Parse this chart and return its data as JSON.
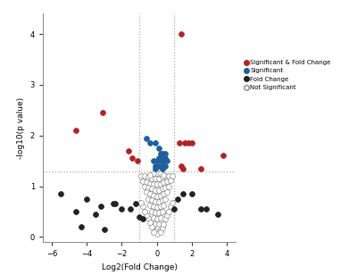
{
  "title": "",
  "xlabel": "Log2(Fold Change)",
  "ylabel": "-log10(p value)",
  "xlim": [
    -6.5,
    4.5
  ],
  "ylim": [
    -0.1,
    4.4
  ],
  "xticks": [
    -6,
    -4,
    -2,
    0,
    2,
    4
  ],
  "yticks": [
    0,
    1,
    2,
    3,
    4
  ],
  "vline1": -1.0,
  "vline2": 1.0,
  "hline": 1.3,
  "colors": {
    "significant_fold": "#b22222",
    "significant": "#1f5f9e",
    "fold_change": "#222222",
    "not_significant_edge": "#888888",
    "not_significant_face": "white"
  },
  "significant_fold_points": [
    [
      1.4,
      4.0
    ],
    [
      -3.1,
      2.45
    ],
    [
      -4.6,
      2.1
    ],
    [
      -1.6,
      1.7
    ],
    [
      -1.4,
      1.55
    ],
    [
      -1.1,
      1.5
    ],
    [
      1.3,
      1.85
    ],
    [
      1.6,
      1.85
    ],
    [
      1.8,
      1.85
    ],
    [
      1.4,
      1.4
    ],
    [
      1.5,
      1.35
    ],
    [
      2.0,
      1.85
    ],
    [
      3.8,
      1.6
    ],
    [
      2.5,
      1.35
    ]
  ],
  "significant_points": [
    [
      -0.6,
      1.95
    ],
    [
      -0.4,
      1.85
    ],
    [
      -0.1,
      1.85
    ],
    [
      0.1,
      1.75
    ],
    [
      0.2,
      1.65
    ],
    [
      0.3,
      1.65
    ],
    [
      0.5,
      1.65
    ],
    [
      0.1,
      1.55
    ],
    [
      0.3,
      1.55
    ],
    [
      0.5,
      1.55
    ],
    [
      -0.2,
      1.5
    ],
    [
      0.0,
      1.5
    ],
    [
      0.2,
      1.5
    ],
    [
      0.4,
      1.5
    ],
    [
      0.6,
      1.5
    ],
    [
      -0.1,
      1.4
    ],
    [
      0.1,
      1.4
    ],
    [
      0.3,
      1.4
    ],
    [
      0.5,
      1.4
    ],
    [
      -0.1,
      1.35
    ],
    [
      0.3,
      1.35
    ]
  ],
  "fold_change_points": [
    [
      -5.5,
      0.85
    ],
    [
      -4.6,
      0.5
    ],
    [
      -4.3,
      0.2
    ],
    [
      -4.0,
      0.75
    ],
    [
      -3.5,
      0.45
    ],
    [
      -3.2,
      0.6
    ],
    [
      -3.0,
      0.15
    ],
    [
      -2.5,
      0.65
    ],
    [
      -2.4,
      0.65
    ],
    [
      -2.0,
      0.55
    ],
    [
      -1.5,
      0.55
    ],
    [
      -1.2,
      0.65
    ],
    [
      -1.0,
      0.4
    ],
    [
      -0.8,
      0.35
    ],
    [
      1.0,
      0.55
    ],
    [
      1.2,
      0.75
    ],
    [
      1.5,
      0.85
    ],
    [
      2.0,
      0.85
    ],
    [
      2.5,
      0.55
    ],
    [
      2.8,
      0.55
    ],
    [
      3.5,
      0.45
    ]
  ],
  "not_significant_points": [
    [
      -0.9,
      1.2
    ],
    [
      -0.7,
      1.2
    ],
    [
      -0.5,
      1.18
    ],
    [
      -0.3,
      1.15
    ],
    [
      -0.1,
      1.15
    ],
    [
      0.1,
      1.15
    ],
    [
      0.3,
      1.18
    ],
    [
      0.5,
      1.2
    ],
    [
      0.7,
      1.2
    ],
    [
      0.9,
      1.2
    ],
    [
      -0.8,
      1.1
    ],
    [
      -0.6,
      1.08
    ],
    [
      -0.4,
      1.05
    ],
    [
      -0.2,
      1.05
    ],
    [
      0.0,
      1.05
    ],
    [
      0.2,
      1.05
    ],
    [
      0.4,
      1.08
    ],
    [
      0.6,
      1.1
    ],
    [
      0.8,
      1.12
    ],
    [
      -0.7,
      1.0
    ],
    [
      -0.5,
      0.98
    ],
    [
      -0.3,
      0.95
    ],
    [
      -0.1,
      0.92
    ],
    [
      0.1,
      0.92
    ],
    [
      0.3,
      0.95
    ],
    [
      0.5,
      0.98
    ],
    [
      0.7,
      1.0
    ],
    [
      -0.6,
      0.88
    ],
    [
      -0.4,
      0.85
    ],
    [
      -0.2,
      0.82
    ],
    [
      0.0,
      0.8
    ],
    [
      0.2,
      0.82
    ],
    [
      0.4,
      0.85
    ],
    [
      0.6,
      0.88
    ],
    [
      -0.5,
      0.75
    ],
    [
      -0.3,
      0.72
    ],
    [
      -0.1,
      0.7
    ],
    [
      0.1,
      0.7
    ],
    [
      0.3,
      0.72
    ],
    [
      0.5,
      0.75
    ],
    [
      -0.4,
      0.62
    ],
    [
      -0.2,
      0.6
    ],
    [
      0.0,
      0.58
    ],
    [
      0.2,
      0.6
    ],
    [
      0.4,
      0.62
    ],
    [
      -0.3,
      0.5
    ],
    [
      -0.1,
      0.48
    ],
    [
      0.1,
      0.48
    ],
    [
      0.3,
      0.5
    ],
    [
      -0.2,
      0.38
    ],
    [
      0.0,
      0.36
    ],
    [
      0.2,
      0.38
    ],
    [
      -0.1,
      0.26
    ],
    [
      0.1,
      0.26
    ],
    [
      0.0,
      0.16
    ],
    [
      0.1,
      0.12
    ],
    [
      -0.1,
      0.12
    ],
    [
      0.0,
      0.06
    ],
    [
      0.2,
      0.1
    ],
    [
      -0.2,
      0.1
    ],
    [
      0.3,
      0.18
    ],
    [
      -0.3,
      0.2
    ],
    [
      0.4,
      0.26
    ],
    [
      -0.4,
      0.28
    ],
    [
      0.5,
      0.36
    ],
    [
      -0.5,
      0.38
    ],
    [
      0.6,
      0.42
    ],
    [
      -0.6,
      0.42
    ],
    [
      0.7,
      0.5
    ],
    [
      -0.7,
      0.5
    ],
    [
      0.8,
      0.6
    ],
    [
      -0.8,
      0.6
    ],
    [
      0.9,
      0.68
    ],
    [
      -0.9,
      0.68
    ],
    [
      0.0,
      1.25
    ],
    [
      0.2,
      1.25
    ],
    [
      -0.2,
      1.25
    ],
    [
      0.4,
      1.22
    ],
    [
      -0.4,
      1.22
    ]
  ],
  "legend_labels": [
    "Significant & Fold Change",
    "Significant",
    "Fold Change",
    "Not Significant"
  ],
  "marker_size": 18,
  "background_color": "white",
  "figsize": [
    4.0,
    3.08
  ],
  "dpi": 100
}
